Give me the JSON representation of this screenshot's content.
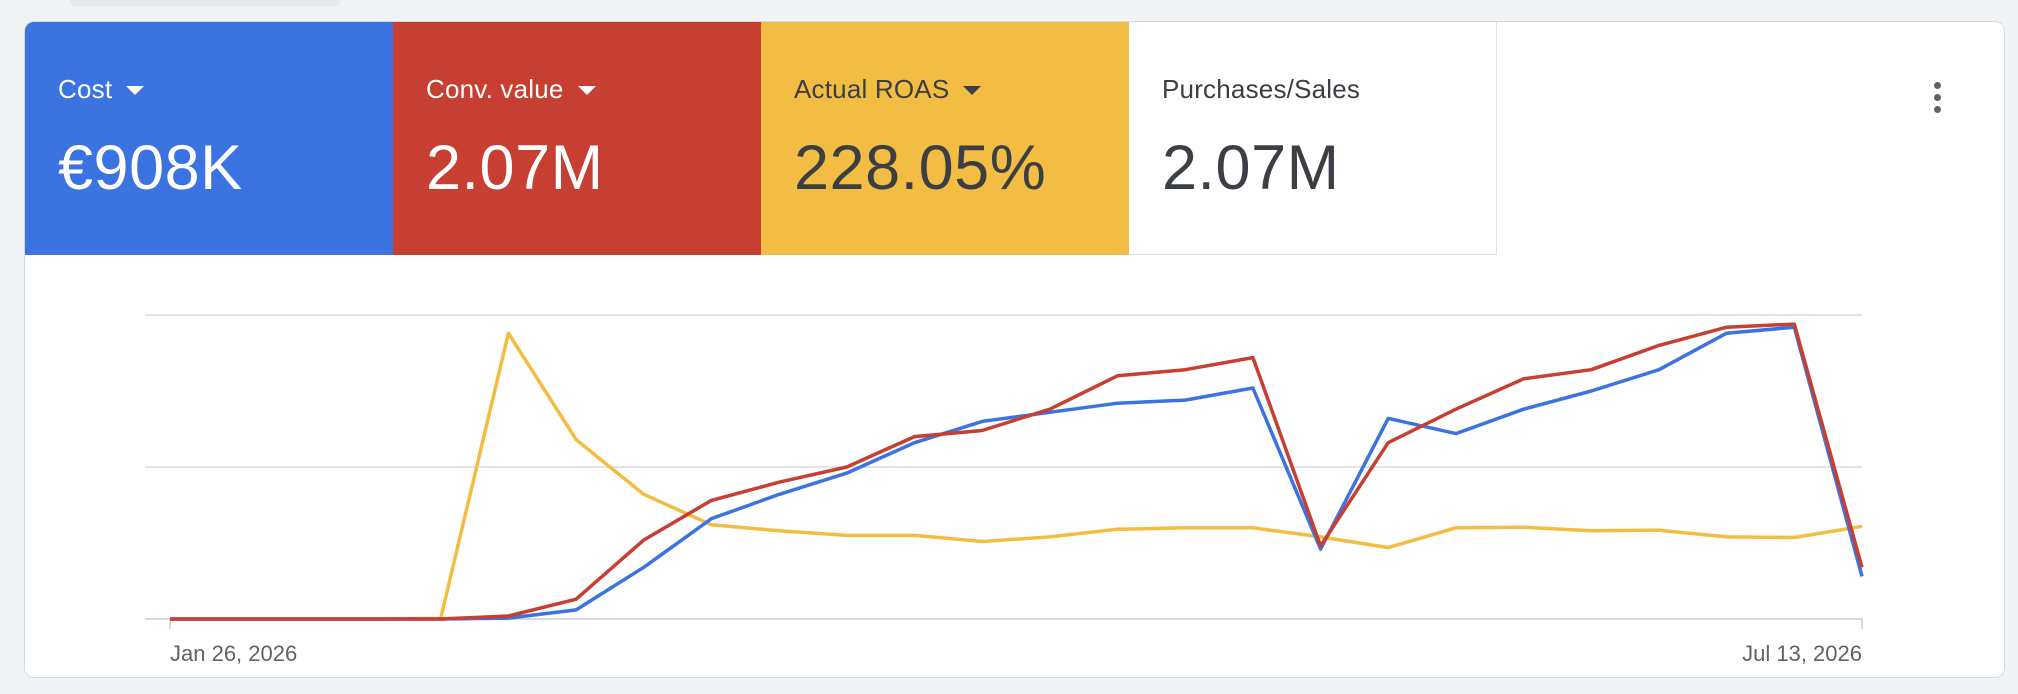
{
  "scorecards": [
    {
      "label": "Cost",
      "value": "€908K",
      "has_dropdown": true,
      "color": "#3b73e0"
    },
    {
      "label": "Conv. value",
      "value": "2.07M",
      "has_dropdown": true,
      "color": "#c63f32"
    },
    {
      "label": "Actual ROAS",
      "value": "228.05%",
      "has_dropdown": true,
      "color": "#f2bd42"
    },
    {
      "label": "Purchases/Sales",
      "value": "2.07M",
      "has_dropdown": false,
      "color": "#ffffff"
    }
  ],
  "menu": {
    "icon": "more-vert-icon"
  },
  "chart_data": {
    "type": "line",
    "x_start_label": "Jan 26, 2026",
    "x_end_label": "Jul 13, 2026",
    "gridlines": 3,
    "legend": "none",
    "series": [
      {
        "color": "#3b73e0",
        "values": [
          0,
          0,
          0,
          0,
          0,
          0.003,
          0.03,
          0.17,
          0.33,
          0.41,
          0.48,
          0.58,
          0.65,
          0.68,
          0.71,
          0.72,
          0.76,
          0.23,
          0.66,
          0.61,
          0.69,
          0.75,
          0.82,
          0.94,
          0.96,
          0.14
        ]
      },
      {
        "color": "#c63f32",
        "values": [
          0,
          0,
          0,
          0,
          0,
          0.01,
          0.065,
          0.26,
          0.39,
          0.45,
          0.5,
          0.6,
          0.62,
          0.69,
          0.8,
          0.82,
          0.86,
          0.24,
          0.58,
          0.69,
          0.79,
          0.82,
          0.9,
          0.96,
          0.97,
          0.17
        ]
      },
      {
        "color": "#f2bd42",
        "values": [
          0,
          0,
          0,
          0,
          0.002,
          0.94,
          0.59,
          0.41,
          0.31,
          0.29,
          0.275,
          0.275,
          0.255,
          0.27,
          0.295,
          0.3,
          0.3,
          0.27,
          0.235,
          0.3,
          0.302,
          0.29,
          0.292,
          0.27,
          0.268,
          0.305
        ]
      }
    ]
  }
}
